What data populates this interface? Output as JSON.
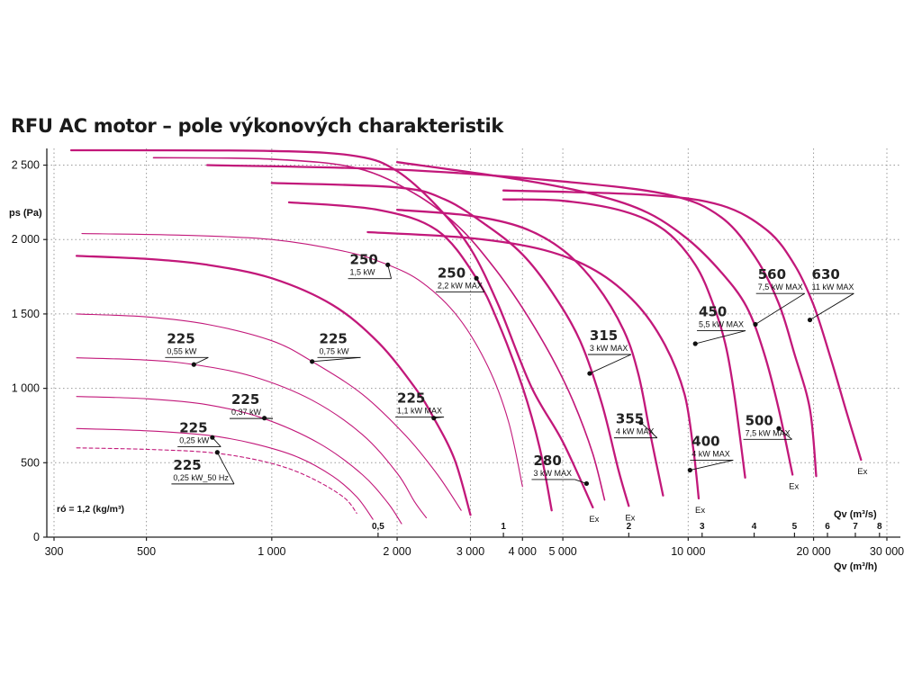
{
  "chart_data": {
    "type": "line",
    "title": "RFU AC motor – pole výkonových charakteristik",
    "ylabel": "ps (Pa)",
    "xlabel": "Qv (m³/h)",
    "x2label": "Qv (m³/s)",
    "density_note": "ró = 1,2 (kg/m³)",
    "x_scale": "log",
    "xlim": [
      300,
      30000
    ],
    "ylim": [
      0,
      2600
    ],
    "grid": true,
    "x_ticks": [
      {
        "v": 300,
        "label": "300"
      },
      {
        "v": 500,
        "label": "500"
      },
      {
        "v": 1000,
        "label": "1 000"
      },
      {
        "v": 2000,
        "label": "2 000"
      },
      {
        "v": 3000,
        "label": "3 000"
      },
      {
        "v": 4000,
        "label": "4 000"
      },
      {
        "v": 5000,
        "label": "5 000"
      },
      {
        "v": 10000,
        "label": "10 000"
      },
      {
        "v": 20000,
        "label": "20 000"
      },
      {
        "v": 30000,
        "label": "30 000"
      }
    ],
    "x_grid": [
      300,
      500,
      1000,
      2000,
      3000,
      4000,
      5000,
      10000,
      20000,
      30000
    ],
    "y_ticks": [
      {
        "v": 0,
        "label": "0"
      },
      {
        "v": 500,
        "label": "500"
      },
      {
        "v": 1000,
        "label": "1 000"
      },
      {
        "v": 1500,
        "label": "1 500"
      },
      {
        "v": 2000,
        "label": "2 000"
      },
      {
        "v": 2500,
        "label": "2 500"
      }
    ],
    "q_ticks": [
      {
        "v": 1800,
        "label": "0,5"
      },
      {
        "v": 3600,
        "label": "1"
      },
      {
        "v": 7200,
        "label": "2"
      },
      {
        "v": 10800,
        "label": "3"
      },
      {
        "v": 14400,
        "label": "4"
      },
      {
        "v": 18000,
        "label": "5"
      },
      {
        "v": 21600,
        "label": "6"
      },
      {
        "v": 25200,
        "label": "7"
      },
      {
        "v": 28800,
        "label": "8"
      }
    ],
    "series": [
      {
        "size": "225",
        "power": "0,25 kW_50 Hz",
        "dashed": true,
        "color": "#c2187a",
        "width": 1.1,
        "points": [
          [
            340,
            600
          ],
          [
            500,
            590
          ],
          [
            700,
            570
          ],
          [
            900,
            525
          ],
          [
            1100,
            460
          ],
          [
            1300,
            370
          ],
          [
            1500,
            260
          ],
          [
            1600,
            160
          ]
        ],
        "marker": [
          740,
          570
        ],
        "label_pos": [
          580,
          430
        ],
        "ex": false
      },
      {
        "size": "225",
        "power": "0,25 kW",
        "dashed": false,
        "color": "#c2187a",
        "width": 1.1,
        "points": [
          [
            340,
            730
          ],
          [
            500,
            715
          ],
          [
            700,
            685
          ],
          [
            900,
            630
          ],
          [
            1150,
            540
          ],
          [
            1400,
            410
          ],
          [
            1600,
            270
          ],
          [
            1750,
            120
          ]
        ],
        "marker": [
          720,
          670
        ],
        "label_pos": [
          600,
          680
        ],
        "ex": false
      },
      {
        "size": "225",
        "power": "0,37 kW",
        "dashed": false,
        "color": "#c2187a",
        "width": 1.1,
        "points": [
          [
            340,
            945
          ],
          [
            500,
            930
          ],
          [
            700,
            890
          ],
          [
            950,
            800
          ],
          [
            1300,
            630
          ],
          [
            1650,
            420
          ],
          [
            1900,
            230
          ],
          [
            2050,
            90
          ]
        ],
        "marker": [
          960,
          800
        ],
        "label_pos": [
          800,
          870
        ],
        "ex": false
      },
      {
        "size": "225",
        "power": "0,55 kW",
        "dashed": false,
        "color": "#c2187a",
        "width": 1.1,
        "points": [
          [
            340,
            1205
          ],
          [
            500,
            1190
          ],
          [
            650,
            1160
          ],
          [
            900,
            1080
          ],
          [
            1250,
            920
          ],
          [
            1650,
            690
          ],
          [
            2000,
            430
          ],
          [
            2200,
            240
          ],
          [
            2350,
            130
          ]
        ],
        "marker": [
          650,
          1160
        ],
        "label_pos": [
          560,
          1280
        ],
        "ex": false
      },
      {
        "size": "225",
        "power": "0,75 kW",
        "dashed": false,
        "color": "#c2187a",
        "width": 1.1,
        "points": [
          [
            340,
            1500
          ],
          [
            500,
            1480
          ],
          [
            700,
            1430
          ],
          [
            1000,
            1320
          ],
          [
            1250,
            1180
          ],
          [
            1650,
            960
          ],
          [
            2100,
            680
          ],
          [
            2500,
            420
          ],
          [
            2850,
            180
          ]
        ],
        "marker": [
          1250,
          1180
        ],
        "label_pos": [
          1300,
          1280
        ],
        "ex": false
      },
      {
        "size": "225",
        "power": "1,1 kW MAX",
        "dashed": false,
        "color": "#c2187a",
        "width": 2.3,
        "points": [
          [
            340,
            1890
          ],
          [
            500,
            1870
          ],
          [
            700,
            1830
          ],
          [
            1000,
            1740
          ],
          [
            1400,
            1560
          ],
          [
            1800,
            1310
          ],
          [
            2200,
            1010
          ],
          [
            2450,
            800
          ],
          [
            2750,
            520
          ],
          [
            3000,
            150
          ]
        ],
        "marker": [
          2450,
          800
        ],
        "label_pos": [
          2000,
          880
        ],
        "ex": false
      },
      {
        "size": "250",
        "power": "1,5 kW",
        "dashed": false,
        "color": "#c2187a",
        "width": 1.1,
        "points": [
          [
            350,
            2040
          ],
          [
            600,
            2030
          ],
          [
            1000,
            2000
          ],
          [
            1500,
            1920
          ],
          [
            1900,
            1830
          ],
          [
            2300,
            1710
          ],
          [
            2800,
            1480
          ],
          [
            3300,
            1150
          ],
          [
            3700,
            780
          ],
          [
            4000,
            340
          ]
        ],
        "marker": [
          1900,
          1830
        ],
        "label_pos": [
          1540,
          1810
        ],
        "ex": false
      },
      {
        "size": "250",
        "power": "2,2 kW MAX",
        "dashed": false,
        "color": "#c2187a",
        "width": 2.3,
        "points": [
          [
            1100,
            2250
          ],
          [
            1800,
            2200
          ],
          [
            2500,
            2060
          ],
          [
            3100,
            1740
          ],
          [
            3500,
            1440
          ],
          [
            4000,
            1010
          ],
          [
            4400,
            600
          ],
          [
            4700,
            180
          ]
        ],
        "marker": [
          3100,
          1740
        ],
        "label_pos": [
          2500,
          1720
        ],
        "ex": false
      },
      {
        "size": "280",
        "power": "3 kW MAX",
        "dashed": false,
        "color": "#c2187a",
        "width": 2.3,
        "points": [
          [
            330,
            2600
          ],
          [
            1000,
            2595
          ],
          [
            1600,
            2560
          ],
          [
            2000,
            2460
          ],
          [
            2500,
            2220
          ],
          [
            3000,
            1940
          ],
          [
            3500,
            1560
          ],
          [
            4200,
            1010
          ],
          [
            5000,
            640
          ],
          [
            5900,
            200
          ]
        ],
        "marker": [
          5700,
          360
        ],
        "label_pos": [
          4250,
          460
        ],
        "ex": true
      },
      {
        "size": "280",
        "power": "",
        "dashed": false,
        "color": "#c2187a",
        "width": 1.6,
        "points": [
          [
            520,
            2550
          ],
          [
            1000,
            2540
          ],
          [
            1600,
            2480
          ],
          [
            2200,
            2310
          ],
          [
            2800,
            2090
          ],
          [
            3400,
            1820
          ],
          [
            4000,
            1540
          ],
          [
            4700,
            1210
          ],
          [
            5300,
            910
          ],
          [
            5900,
            560
          ],
          [
            6300,
            250
          ]
        ],
        "marker": null,
        "label_pos": null,
        "ex": false
      },
      {
        "size": "315",
        "power": "3 kW MAX",
        "dashed": false,
        "color": "#c2187a",
        "width": 2.3,
        "points": [
          [
            1000,
            2380
          ],
          [
            2000,
            2350
          ],
          [
            2600,
            2270
          ],
          [
            3300,
            2090
          ],
          [
            4000,
            1900
          ],
          [
            4700,
            1650
          ],
          [
            5500,
            1320
          ],
          [
            6200,
            900
          ],
          [
            6800,
            450
          ],
          [
            7200,
            210
          ]
        ],
        "marker": [
          5800,
          1100
        ],
        "label_pos": [
          5800,
          1300
        ],
        "ex": true
      },
      {
        "size": "355",
        "power": "4 kW MAX",
        "dashed": false,
        "color": "#c2187a",
        "width": 2.3,
        "points": [
          [
            2000,
            2200
          ],
          [
            3000,
            2160
          ],
          [
            4000,
            2080
          ],
          [
            5000,
            1930
          ],
          [
            6000,
            1700
          ],
          [
            7000,
            1390
          ],
          [
            7600,
            1090
          ],
          [
            8100,
            700
          ],
          [
            8700,
            280
          ]
        ],
        "marker": [
          7700,
          770
        ],
        "label_pos": [
          6700,
          740
        ],
        "ex": false
      },
      {
        "size": "400",
        "power": "4 kW MAX",
        "dashed": false,
        "color": "#c2187a",
        "width": 2.3,
        "points": [
          [
            1700,
            2050
          ],
          [
            3000,
            2010
          ],
          [
            4500,
            1930
          ],
          [
            6000,
            1790
          ],
          [
            7500,
            1570
          ],
          [
            8800,
            1290
          ],
          [
            9800,
            960
          ],
          [
            10300,
            580
          ],
          [
            10600,
            260
          ]
        ],
        "marker": [
          10100,
          450
        ],
        "label_pos": [
          10200,
          590
        ],
        "ex": true
      },
      {
        "size": "450",
        "power": "5,5 kW MAX",
        "dashed": false,
        "color": "#c2187a",
        "width": 2.3,
        "points": [
          [
            3600,
            2270
          ],
          [
            5000,
            2260
          ],
          [
            7000,
            2190
          ],
          [
            8800,
            2060
          ],
          [
            10400,
            1830
          ],
          [
            11500,
            1560
          ],
          [
            12300,
            1290
          ],
          [
            12900,
            960
          ],
          [
            13700,
            400
          ]
        ],
        "marker": [
          10400,
          1300
        ],
        "label_pos": [
          10600,
          1460
        ],
        "ex": false
      },
      {
        "size": "500",
        "power": "7,5 kW MAX",
        "dashed": false,
        "color": "#c2187a",
        "width": 2.3,
        "points": [
          [
            2000,
            2520
          ],
          [
            4000,
            2400
          ],
          [
            6000,
            2300
          ],
          [
            8000,
            2180
          ],
          [
            10000,
            2000
          ],
          [
            12000,
            1780
          ],
          [
            13800,
            1550
          ],
          [
            15200,
            1240
          ],
          [
            16500,
            860
          ],
          [
            17800,
            420
          ]
        ],
        "marker": [
          16500,
          730
        ],
        "label_pos": [
          13700,
          730
        ],
        "ex": true
      },
      {
        "size": "560",
        "power": "7,5 kW MAX",
        "dashed": false,
        "color": "#c2187a",
        "width": 2.3,
        "points": [
          [
            700,
            2500
          ],
          [
            2000,
            2470
          ],
          [
            5000,
            2390
          ],
          [
            9000,
            2300
          ],
          [
            12000,
            2150
          ],
          [
            14500,
            1880
          ],
          [
            16500,
            1570
          ],
          [
            18000,
            1230
          ],
          [
            19600,
            860
          ],
          [
            20300,
            410
          ]
        ],
        "marker": [
          14500,
          1430
        ],
        "label_pos": [
          14700,
          1710
        ],
        "ex": false
      },
      {
        "size": "630",
        "power": "11 kW MAX",
        "dashed": false,
        "color": "#c2187a",
        "width": 2.3,
        "points": [
          [
            3600,
            2330
          ],
          [
            8000,
            2300
          ],
          [
            12000,
            2230
          ],
          [
            15500,
            2060
          ],
          [
            18000,
            1830
          ],
          [
            20000,
            1560
          ],
          [
            22000,
            1200
          ],
          [
            24000,
            840
          ],
          [
            26000,
            520
          ]
        ],
        "marker": [
          19600,
          1460
        ],
        "label_pos": [
          19800,
          1710
        ],
        "ex": true
      }
    ]
  }
}
